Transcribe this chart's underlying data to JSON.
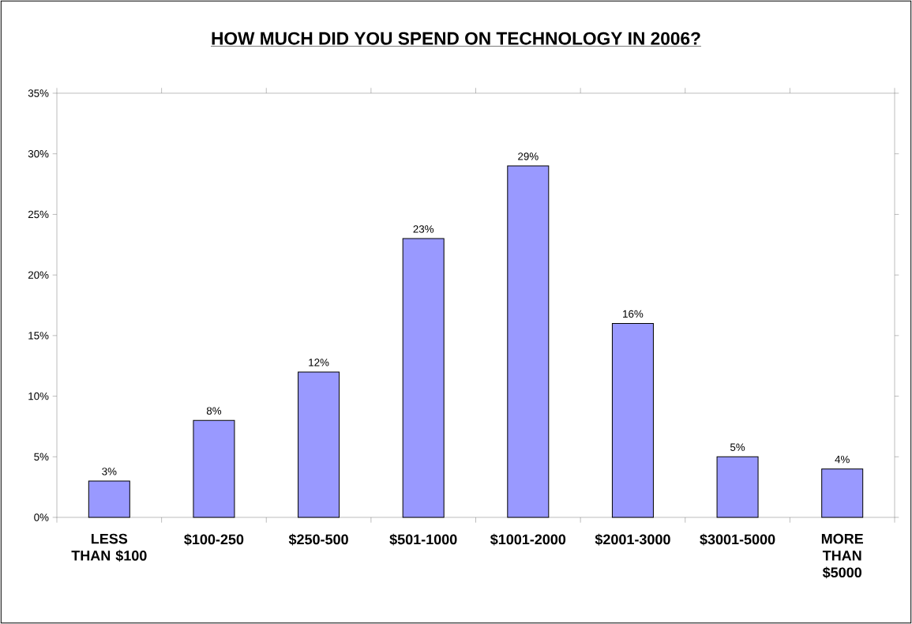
{
  "chart_data": {
    "type": "bar",
    "title": "HOW MUCH DID YOU SPEND ON TECHNOLOGY IN 2006?",
    "categories": [
      "LESS THAN $100",
      "$100-250",
      "$250-500",
      "$501-1000",
      "$1001-2000",
      "$2001-3000",
      "$3001-5000",
      "MORE THAN $5000"
    ],
    "values": [
      3,
      8,
      12,
      23,
      29,
      16,
      5,
      4
    ],
    "value_labels": [
      "3%",
      "8%",
      "12%",
      "23%",
      "29%",
      "16%",
      "5%",
      "4%"
    ],
    "color": "#9999ff",
    "ylim": [
      0,
      35
    ],
    "yticks": [
      {
        "value": 0,
        "label": "0%"
      },
      {
        "value": 5,
        "label": "5%"
      },
      {
        "value": 10,
        "label": "10%"
      },
      {
        "value": 15,
        "label": "15%"
      },
      {
        "value": 20,
        "label": "20%"
      },
      {
        "value": 25,
        "label": "25%"
      },
      {
        "value": 30,
        "label": "30%"
      },
      {
        "value": 35,
        "label": "35%"
      }
    ]
  }
}
